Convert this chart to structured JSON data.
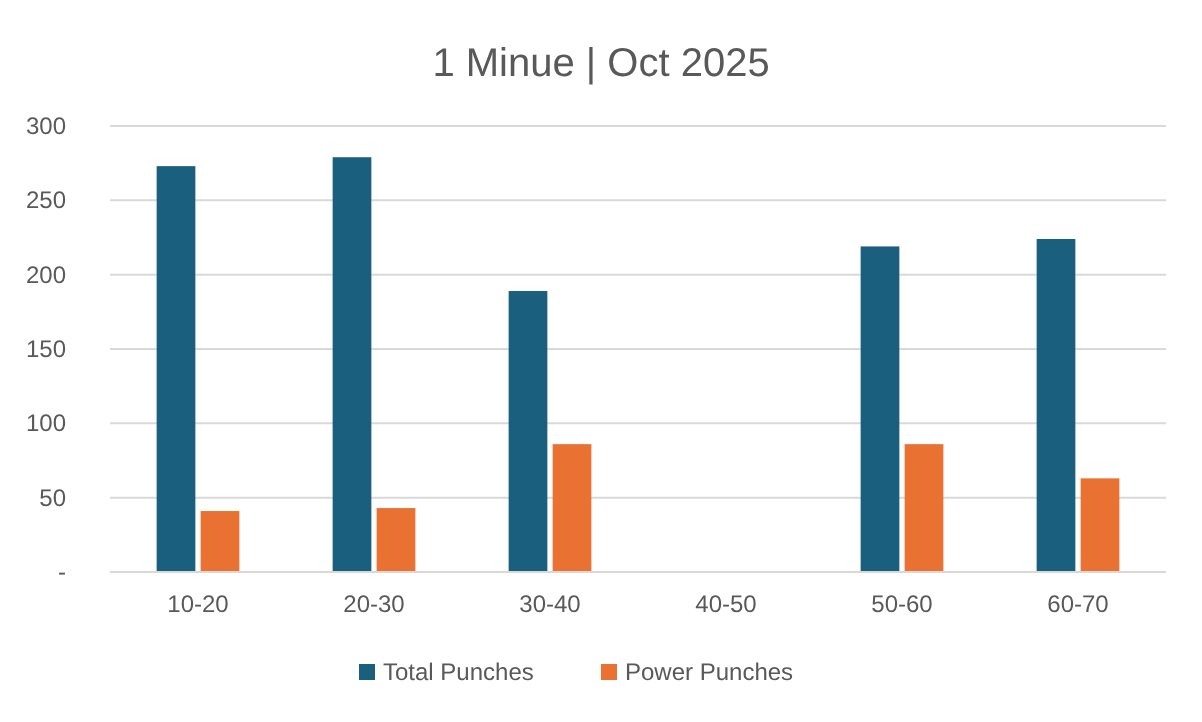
{
  "chart_data": {
    "type": "bar",
    "title": "1 Minue | Oct 2025",
    "categories": [
      "10-20",
      "20-30",
      "30-40",
      "40-50",
      "50-60",
      "60-70"
    ],
    "series": [
      {
        "name": "Total Punches",
        "color": "#1b5f7f",
        "values": [
          273,
          279,
          189,
          null,
          219,
          224
        ]
      },
      {
        "name": "Power Punches",
        "color": "#e97132",
        "values": [
          41,
          43,
          86,
          null,
          86,
          63
        ]
      }
    ],
    "ylim": [
      0,
      300
    ],
    "yticks": [
      {
        "value": 0,
        "label": "-"
      },
      50,
      100,
      150,
      200,
      250,
      300
    ],
    "grid": "y",
    "legend": "bottom"
  }
}
